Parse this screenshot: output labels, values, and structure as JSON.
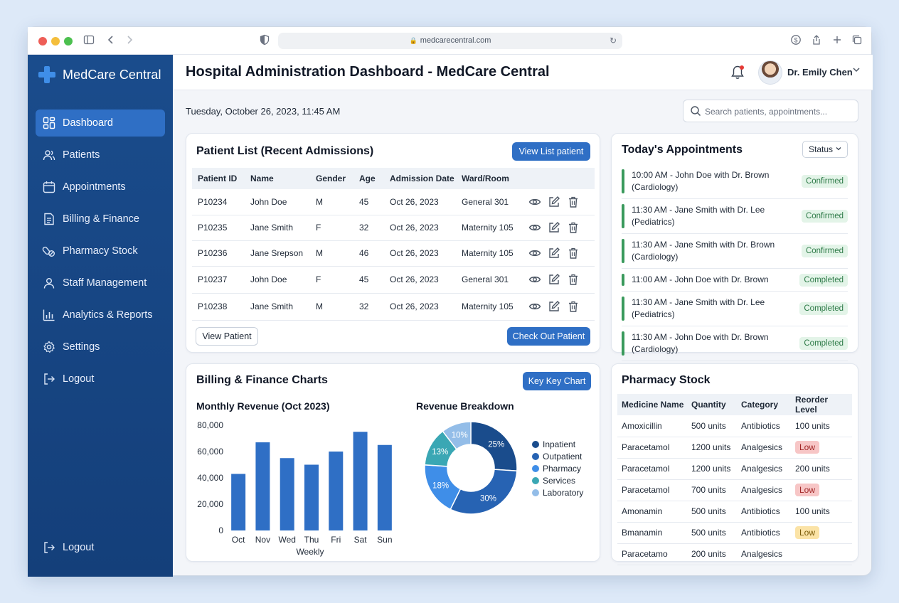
{
  "browser": {
    "url": "medcarecentral.com"
  },
  "app": {
    "brand": "MedCare Central"
  },
  "sidebar": {
    "items": [
      {
        "label": "Dashboard",
        "icon": "dashboard-icon",
        "active": true
      },
      {
        "label": "Patients",
        "icon": "users-icon"
      },
      {
        "label": "Appointments",
        "icon": "calendar-icon"
      },
      {
        "label": "Billing & Finance",
        "icon": "invoice-icon"
      },
      {
        "label": "Pharmacy Stock",
        "icon": "pills-icon"
      },
      {
        "label": "Staff Management",
        "icon": "staff-icon"
      },
      {
        "label": "Analytics & Reports",
        "icon": "bar-chart-icon"
      },
      {
        "label": "Settings",
        "icon": "gear-icon"
      },
      {
        "label": "Logout",
        "icon": "logout-icon"
      }
    ],
    "bottom_logout": "Logout"
  },
  "header": {
    "title": "Hospital Administration Dashboard - MedCare Central",
    "user_name": "Dr. Emily Chen"
  },
  "date_line": "Tuesday, October 26, 2023, 11:45 AM",
  "search": {
    "placeholder": "Search patients, appointments..."
  },
  "patients": {
    "title": "Patient List (Recent Admissions)",
    "view_list_button": "View List patient",
    "columns": [
      "Patient ID",
      "Name",
      "Gender",
      "Age",
      "Admission Date",
      "Ward/Room"
    ],
    "rows": [
      [
        "P10234",
        "John Doe",
        "M",
        "45",
        "Oct 26, 2023",
        "General 301"
      ],
      [
        "P10235",
        "Jane Smith",
        "F",
        "32",
        "Oct 26, 2023",
        "Maternity 105"
      ],
      [
        "P10236",
        "Jane Srepson",
        "M",
        "46",
        "Oct 26, 2023",
        "Maternity 105"
      ],
      [
        "P10237",
        "John Doe",
        "F",
        "45",
        "Oct 26, 2023",
        "General 301"
      ],
      [
        "P10238",
        "Jane Smith",
        "M",
        "32",
        "Oct 26, 2023",
        "Maternity 105"
      ]
    ],
    "view_patient_button": "View Patient",
    "checkout_button": "Check Out Patient"
  },
  "appointments": {
    "title": "Today's Appointments",
    "status_filter": "Status",
    "items": [
      {
        "text": "10:00 AM - John Doe with Dr. Brown (Cardiology)",
        "status": "Confirmed"
      },
      {
        "text": "11:30 AM - Jane Smith with Dr. Lee (Pediatrics)",
        "status": "Confirmed"
      },
      {
        "text": "11:30 AM - Jane Smith with Dr. Brown (Cardiology)",
        "status": "Confirmed"
      },
      {
        "text": "11:00 AM - John Doe with Dr. Brown",
        "status": "Completed"
      },
      {
        "text": "11:30 AM - Jane Smith with Dr. Lee (Pediatrics)",
        "status": "Completed"
      },
      {
        "text": "11:30 AM - John Doe with Dr. Brown (Cardiology)",
        "status": "Completed"
      }
    ]
  },
  "billing": {
    "title": "Billing & Finance Charts",
    "key_chart_button": "Key Key Chart"
  },
  "chart_data": [
    {
      "type": "bar",
      "title": "Monthly Revenue (Oct 2023)",
      "xlabel": "Weekly",
      "ylabel": "",
      "categories": [
        "Oct",
        "Nov",
        "Wed",
        "Thu",
        "Fri",
        "Sat",
        "Sun"
      ],
      "values": [
        43000,
        67000,
        55000,
        50000,
        60000,
        75000,
        65000
      ],
      "ylim": [
        0,
        80000
      ],
      "yticks": [
        "80,000",
        "60,000",
        "40,000",
        "20,000",
        "0"
      ],
      "color": "#2f6fc5"
    },
    {
      "type": "pie",
      "title": "Revenue Breakdown",
      "labels": [
        "Inpatient",
        "Outpatient",
        "Pharmacy",
        "Services",
        "Laboratory"
      ],
      "values": [
        25,
        30,
        18,
        13,
        10
      ],
      "value_labels": [
        "25%",
        "30%",
        "18%",
        "13%",
        "10%"
      ],
      "colors": [
        "#1a4c8c",
        "#2763b3",
        "#3f8ee8",
        "#3aa7b4",
        "#93bde8"
      ]
    }
  ],
  "pharmacy": {
    "title": "Pharmacy Stock",
    "columns": [
      "Medicine Name",
      "Quantity",
      "Category",
      "Reorder Level"
    ],
    "rows": [
      {
        "name": "Amoxicillin",
        "qty": "500 units",
        "cat": "Antibiotics",
        "level": "100 units",
        "flag": ""
      },
      {
        "name": "Paracetamol",
        "qty": "1200 units",
        "cat": "Analgesics",
        "level": "Low",
        "flag": "red"
      },
      {
        "name": "Paracetamol",
        "qty": "1200 units",
        "cat": "Analgesics",
        "level": "200 units",
        "flag": ""
      },
      {
        "name": "Paracetamol",
        "qty": "700 units",
        "cat": "Analgesics",
        "level": "Low",
        "flag": "red"
      },
      {
        "name": "Amonamin",
        "qty": "500 units",
        "cat": "Antibiotics",
        "level": "100 units",
        "flag": ""
      },
      {
        "name": "Bmanamin",
        "qty": "500 units",
        "cat": "Antibiotics",
        "level": "Low",
        "flag": "yellow"
      },
      {
        "name": "Paracetamo",
        "qty": "200 units",
        "cat": "Analgesics",
        "level": "",
        "flag": ""
      }
    ]
  }
}
